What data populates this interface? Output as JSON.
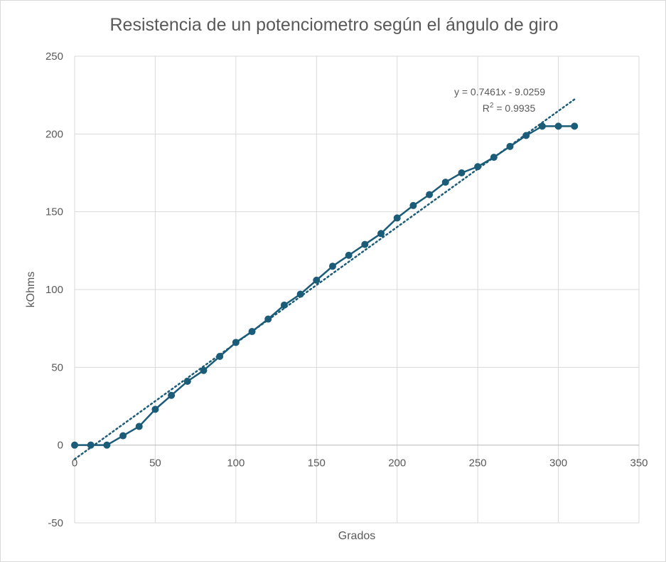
{
  "chart_data": {
    "type": "line",
    "title": "Resistencia de un potenciometro según el ángulo de giro",
    "xlabel": "Grados",
    "ylabel": "kOhms",
    "xlim": [
      0,
      350
    ],
    "ylim": [
      -50,
      250
    ],
    "x_ticks": [
      0,
      50,
      100,
      150,
      200,
      250,
      300,
      350
    ],
    "y_ticks": [
      -50,
      0,
      50,
      100,
      150,
      200,
      250
    ],
    "grid": true,
    "legend": "none",
    "series": [
      {
        "x": [
          0,
          10,
          20,
          30,
          40,
          50,
          60,
          70,
          80,
          90,
          100,
          110,
          120,
          130,
          140,
          150,
          160,
          170,
          180,
          190,
          200,
          210,
          220,
          230,
          240,
          250,
          260,
          270,
          280,
          290,
          300,
          310
        ],
        "values": [
          0,
          0,
          0,
          6,
          12,
          23,
          32,
          41,
          48,
          57,
          66,
          73,
          81,
          90,
          97,
          106,
          115,
          122,
          129,
          136,
          146,
          154,
          161,
          169,
          175,
          179,
          185,
          192,
          199,
          205,
          205,
          205
        ],
        "color": "#1b5c78",
        "marker": "circle"
      }
    ],
    "trendline": {
      "type": "linear",
      "slope": 0.7461,
      "intercept": -9.0259,
      "x_range": [
        0,
        310
      ],
      "style": "dotted",
      "color": "#1b5c78",
      "equation_label": "y = 0.7461x - 9.0259",
      "r2_prefix": "R",
      "r2_sup": "2",
      "r2_value": " = 0.9935"
    }
  }
}
